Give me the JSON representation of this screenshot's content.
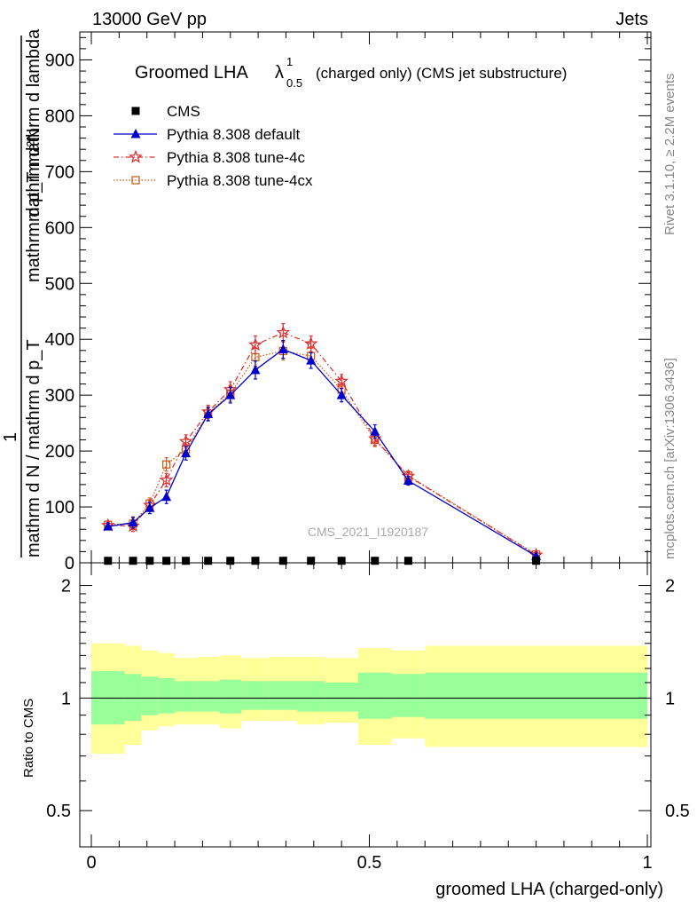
{
  "header": {
    "left": "13000 GeV pp",
    "right": "Jets"
  },
  "side_labels": {
    "rivet": "Rivet 3.1.10, ≥ 2.2M events",
    "mcplots": "mcplots.cern.ch [arXiv:1306.3436]"
  },
  "main_plot": {
    "title_main": "Groomed LHA",
    "title_symbol": "λ",
    "title_sup": "1",
    "title_sub": "0.5",
    "title_rest": "(charged only) (CMS jet substructure)",
    "watermark": "CMS_2021_I1920187",
    "ylabel_numerator": "mathrm d²N",
    "ylabel_denominator": "mathrm d p_T mathrm d lambda",
    "ylabel_lower": "mathrm d N / mathrm d p_T",
    "ylabel_one": "1"
  },
  "ratio_plot": {
    "ylabel": "Ratio to CMS",
    "xlabel": "groomed LHA (charged-only)"
  },
  "legend": [
    {
      "label": "CMS",
      "color": "#000000",
      "marker": "square"
    },
    {
      "label": "Pythia 8.308 default",
      "color": "#0000cc",
      "marker": "triangle"
    },
    {
      "label": "Pythia 8.308 tune-4c",
      "color": "#dd3333",
      "marker": "star"
    },
    {
      "label": "Pythia 8.308 tune-4cx",
      "color": "#c8601e",
      "marker": "open-square"
    }
  ],
  "chart_data": {
    "type": "line",
    "xlim": [
      -0.03,
      1.0
    ],
    "ylim": [
      0,
      950
    ],
    "x_ticks": [
      0,
      0.5,
      1
    ],
    "x_tick_labels": [
      "0",
      "0.5",
      "1"
    ],
    "y_ticks": [
      0,
      100,
      200,
      300,
      400,
      500,
      600,
      700,
      800,
      900
    ],
    "y_tick_labels": [
      "0",
      "100",
      "200",
      "300",
      "400",
      "500",
      "600",
      "700",
      "800",
      "900"
    ],
    "ratio_ylim": [
      0.4,
      2.3
    ],
    "ratio_ticks": [
      0.5,
      1,
      2
    ],
    "ratio_tick_labels": [
      "0.5",
      "1",
      "2"
    ],
    "x": [
      0.03,
      0.075,
      0.105,
      0.135,
      0.17,
      0.21,
      0.25,
      0.295,
      0.345,
      0.395,
      0.45,
      0.51,
      0.57,
      0.8
    ],
    "series": [
      {
        "name": "CMS",
        "color": "#000000",
        "values": [
          2,
          2,
          2,
          2,
          2,
          2,
          2,
          2,
          2,
          2,
          2,
          2,
          2,
          2
        ]
      },
      {
        "name": "Pythia 8.308 default",
        "color": "#0000cc",
        "values": [
          65,
          72,
          98,
          118,
          196,
          266,
          300,
          345,
          382,
          362,
          300,
          235,
          147,
          12
        ],
        "errors": [
          6,
          10,
          10,
          12,
          12,
          12,
          14,
          16,
          16,
          14,
          12,
          12,
          8,
          3
        ]
      },
      {
        "name": "Pythia 8.308 tune-4c",
        "color": "#dd3333",
        "values": [
          67,
          66,
          103,
          148,
          217,
          270,
          310,
          390,
          412,
          392,
          325,
          222,
          155,
          14
        ],
        "errors": [
          7,
          10,
          10,
          12,
          12,
          12,
          14,
          16,
          16,
          14,
          12,
          12,
          8,
          3
        ]
      },
      {
        "name": "Pythia 8.308 tune-4cx",
        "color": "#c8601e",
        "values": [
          68,
          70,
          106,
          176,
          203,
          267,
          303,
          368,
          379,
          370,
          310,
          220,
          156,
          15
        ],
        "errors": [
          6,
          10,
          10,
          12,
          12,
          12,
          14,
          16,
          16,
          14,
          12,
          12,
          8,
          3
        ]
      }
    ],
    "ratio_bands": {
      "edges": [
        0.0,
        0.06,
        0.09,
        0.12,
        0.15,
        0.19,
        0.23,
        0.27,
        0.32,
        0.37,
        0.42,
        0.48,
        0.54,
        0.6,
        1.0
      ],
      "outer_hi": [
        1.4,
        1.38,
        1.34,
        1.32,
        1.28,
        1.29,
        1.3,
        1.28,
        1.29,
        1.29,
        1.28,
        1.36,
        1.34,
        1.38
      ],
      "outer_lo": [
        0.71,
        0.75,
        0.82,
        0.84,
        0.85,
        0.85,
        0.83,
        0.87,
        0.87,
        0.85,
        0.86,
        0.75,
        0.78,
        0.74
      ],
      "inner_hi": [
        1.18,
        1.16,
        1.14,
        1.13,
        1.11,
        1.11,
        1.12,
        1.11,
        1.11,
        1.11,
        1.1,
        1.17,
        1.16,
        1.17
      ],
      "inner_lo": [
        0.85,
        0.87,
        0.9,
        0.91,
        0.92,
        0.92,
        0.91,
        0.93,
        0.93,
        0.92,
        0.92,
        0.88,
        0.89,
        0.88
      ]
    },
    "band_colors": {
      "outer": "#ffff99",
      "inner": "#99ff99"
    }
  }
}
